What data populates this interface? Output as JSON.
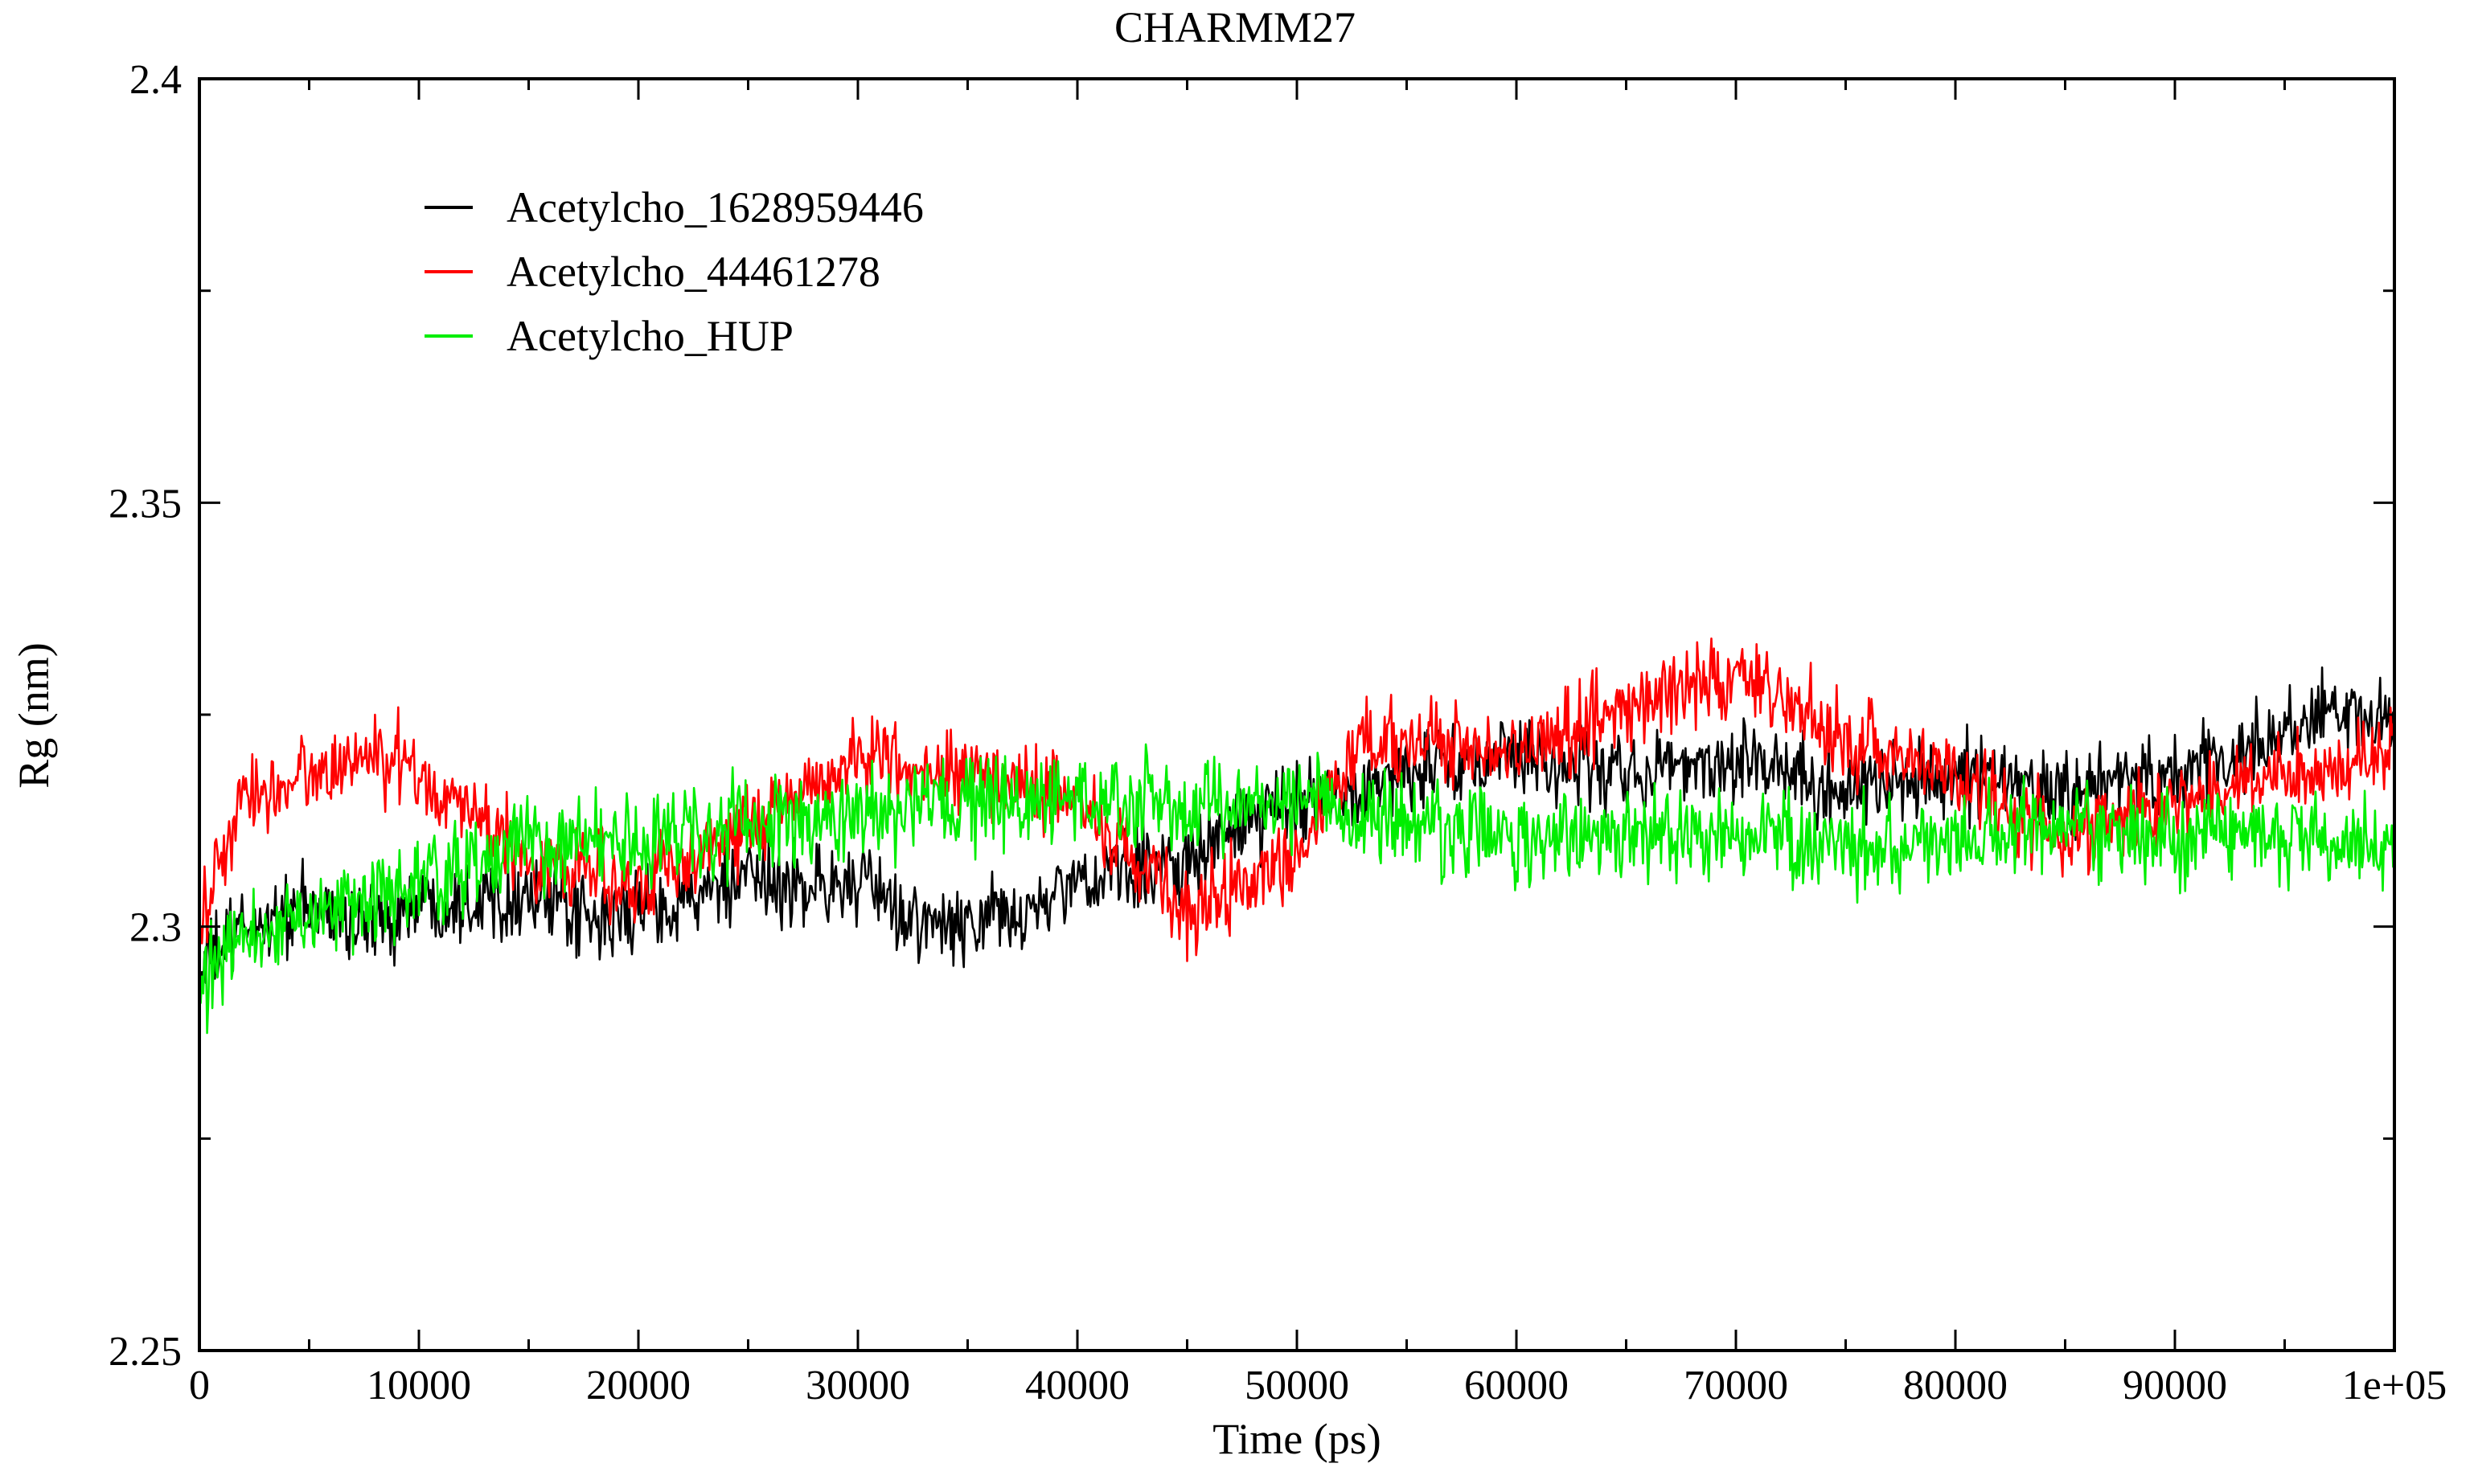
{
  "chart_data": {
    "type": "line",
    "title": "CHARMM27",
    "xlabel": "Time (ps)",
    "ylabel": "Rg (nm)",
    "xlim": [
      0,
      100000
    ],
    "ylim": [
      2.25,
      2.4
    ],
    "x_ticks": [
      0,
      10000,
      20000,
      30000,
      40000,
      50000,
      60000,
      70000,
      80000,
      90000,
      100000
    ],
    "x_tick_labels": [
      "0",
      "10000",
      "20000",
      "30000",
      "40000",
      "50000",
      "60000",
      "70000",
      "80000",
      "90000",
      "1e+05"
    ],
    "y_ticks": [
      2.25,
      2.3,
      2.35,
      2.4
    ],
    "y_tick_labels": [
      "2.25",
      "2.3",
      "2.35",
      "2.4"
    ],
    "legend_position": "top-left",
    "grid": false,
    "series": [
      {
        "name": "Acetylcho_1628959446",
        "color": "#000000",
        "noise": 0.0045,
        "x": [
          0,
          2000,
          5000,
          8000,
          10000,
          15000,
          18000,
          20000,
          25000,
          30000,
          33000,
          35000,
          38000,
          40000,
          45000,
          50000,
          55000,
          60000,
          65000,
          70000,
          75000,
          80000,
          85000,
          90000,
          95000,
          97000,
          100000
        ],
        "y": [
          2.295,
          2.3,
          2.302,
          2.3,
          2.303,
          2.304,
          2.3,
          2.302,
          2.305,
          2.305,
          2.3,
          2.3,
          2.302,
          2.305,
          2.308,
          2.315,
          2.318,
          2.32,
          2.318,
          2.32,
          2.316,
          2.318,
          2.316,
          2.318,
          2.322,
          2.326,
          2.323
        ]
      },
      {
        "name": "Acetylcho_44461278",
        "color": "#ff0000",
        "noise": 0.0045,
        "x": [
          0,
          2000,
          5000,
          8000,
          10000,
          15000,
          20000,
          25000,
          30000,
          35000,
          40000,
          45000,
          50000,
          53000,
          55000,
          60000,
          65000,
          70000,
          75000,
          80000,
          85000,
          90000,
          95000,
          100000
        ],
        "y": [
          2.3,
          2.315,
          2.318,
          2.32,
          2.318,
          2.308,
          2.305,
          2.312,
          2.32,
          2.318,
          2.315,
          2.302,
          2.308,
          2.322,
          2.322,
          2.32,
          2.326,
          2.33,
          2.322,
          2.318,
          2.31,
          2.315,
          2.318,
          2.32
        ]
      },
      {
        "name": "Acetylcho_HUP",
        "color": "#00ee00",
        "noise": 0.005,
        "x": [
          0,
          2000,
          5000,
          8000,
          10000,
          15000,
          20000,
          25000,
          30000,
          35000,
          40000,
          45000,
          50000,
          55000,
          60000,
          65000,
          70000,
          75000,
          80000,
          85000,
          90000,
          95000,
          100000
        ],
        "y": [
          2.293,
          2.298,
          2.302,
          2.303,
          2.305,
          2.31,
          2.31,
          2.312,
          2.313,
          2.314,
          2.315,
          2.314,
          2.315,
          2.312,
          2.31,
          2.311,
          2.311,
          2.309,
          2.31,
          2.312,
          2.311,
          2.31,
          2.31
        ]
      }
    ]
  }
}
